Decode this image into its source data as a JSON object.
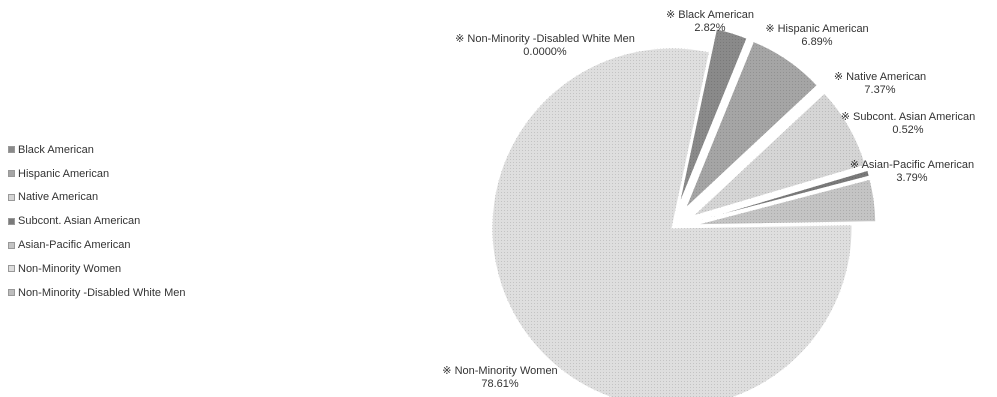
{
  "chart_data": {
    "type": "pie",
    "title": "",
    "legend_position": "left",
    "slices": [
      {
        "name": "Black American",
        "value": 2.82,
        "label": "2.82%",
        "color": "#8a8a8a",
        "exploded": true
      },
      {
        "name": "Hispanic American",
        "value": 6.89,
        "label": "6.89%",
        "color": "#a5a5a5",
        "exploded": true
      },
      {
        "name": "Native American",
        "value": 7.37,
        "label": "7.37%",
        "color": "#d5d5d5",
        "exploded": true
      },
      {
        "name": "Subcont. Asian American",
        "value": 0.52,
        "label": "0.52%",
        "color": "#7a7a7a",
        "exploded": true
      },
      {
        "name": "Asian-Pacific American",
        "value": 3.79,
        "label": "3.79%",
        "color": "#c4c4c4",
        "exploded": true
      },
      {
        "name": "Non-Minority Women",
        "value": 78.61,
        "label": "78.61%",
        "color": "#dedede",
        "exploded": false
      },
      {
        "name": "Non-Minority -Disabled White Men",
        "value": 0.0,
        "label": "0.0000%",
        "color": "#bdbdbd",
        "exploded": false
      }
    ]
  }
}
